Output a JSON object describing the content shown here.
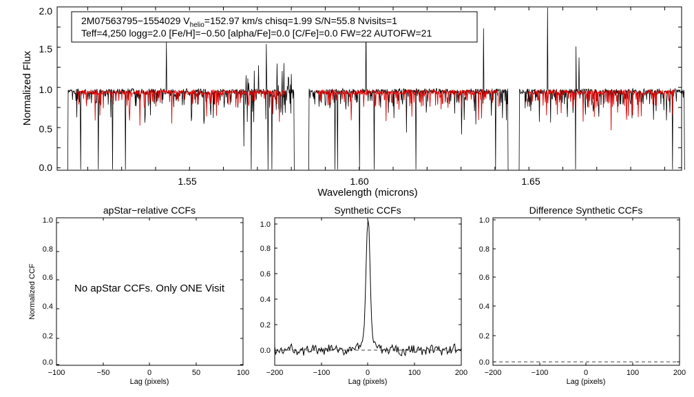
{
  "chart_data": [
    {
      "type": "line",
      "title": "",
      "xlabel": "Wavelength (microns)",
      "ylabel": "Normalized Flux",
      "xlim": [
        1.511,
        1.695
      ],
      "ylim": [
        -0.03,
        2.0
      ],
      "xticks": [
        "1.55",
        "1.60",
        "1.65"
      ],
      "yticks": [
        "0.0",
        "0.5",
        "1.0",
        "1.5",
        "2.0"
      ],
      "info_box": {
        "line1_pre": "2M07563795−1554029  V",
        "line1_sub": "helio",
        "line1_post": "=152.97 km/s  chisq=1.99  S/N=55.8  Nvisits=1",
        "line2": "Teff=4,250 logg=2.0 [Fe/H]=−0.50 [alpha/Fe]=0.0 [C/Fe]=0.0 FW=22 AUTOFW=21"
      },
      "detector_ranges": [
        [
          1.514,
          1.581
        ],
        [
          1.585,
          1.644
        ],
        [
          1.647,
          1.696
        ]
      ],
      "series": [
        {
          "color": "#000000",
          "continuum": 0.95,
          "noise": 0.035
        },
        {
          "color": "#e00000",
          "continuum": 0.94,
          "noise": 0.03
        }
      ]
    },
    {
      "type": "line",
      "title": "apStar−relative CCFs",
      "xlabel": "Lag (pixels)",
      "ylabel": "Normalized CCF",
      "xlim": [
        -100,
        100
      ],
      "ylim": [
        -0.02,
        1.02
      ],
      "xticks": [
        "−100",
        "−50",
        "0",
        "50",
        "100"
      ],
      "yticks": [
        "0.0",
        "0.2",
        "0.4",
        "0.6",
        "0.8",
        "1.0"
      ],
      "annotation": "No apStar CCFs.  Only ONE Visit"
    },
    {
      "type": "line",
      "title": "Synthetic CCFs",
      "xlabel": "Lag (pixels)",
      "ylabel": "",
      "xlim": [
        -200,
        200
      ],
      "ylim": [
        -0.1,
        1.05
      ],
      "xticks": [
        "−200",
        "−100",
        "0",
        "100",
        "200"
      ],
      "yticks": [
        "0.0",
        "0.2",
        "0.4",
        "0.6",
        "0.8",
        "1.0"
      ],
      "peak": {
        "x": 0,
        "y": 1.0
      },
      "baseline": 0.0
    },
    {
      "type": "line",
      "title": "Difference Synthetic CCFs",
      "xlabel": "Lag (pixels)",
      "ylabel": "",
      "xlim": [
        -200,
        200
      ],
      "ylim": [
        -0.02,
        1.02
      ],
      "xticks": [
        "−200",
        "−100",
        "0",
        "100",
        "200"
      ],
      "yticks": [
        "0.0",
        "0.2",
        "0.4",
        "0.6",
        "0.8",
        "1.0"
      ],
      "baseline": 0.0
    }
  ]
}
